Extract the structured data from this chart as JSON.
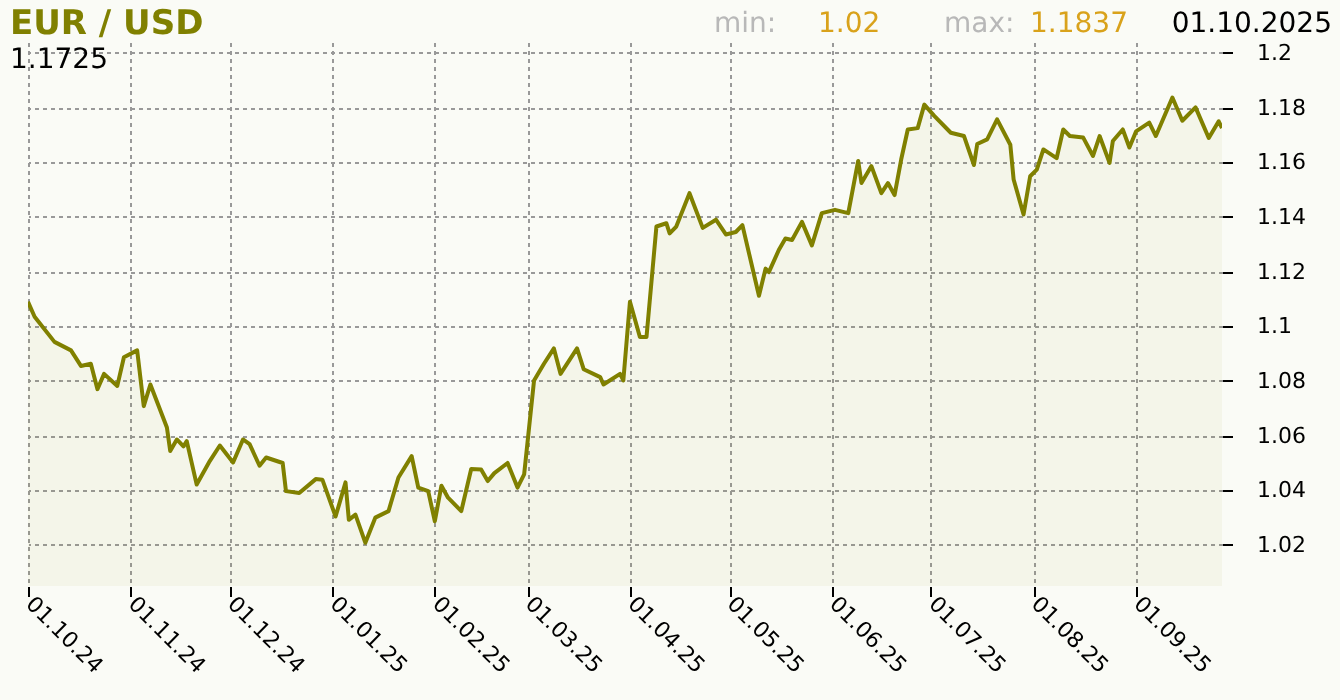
{
  "chart_data": {
    "type": "area",
    "title": "EUR / USD",
    "annotations": [
      "min:",
      "1.02",
      "max:",
      "1.1837",
      "01.10.2025",
      "1.1725"
    ],
    "x": [
      "2024-10-01",
      "2024-10-03",
      "2024-10-09",
      "2024-10-14",
      "2024-10-17",
      "2024-10-20",
      "2024-10-22",
      "2024-10-24",
      "2024-10-28",
      "2024-10-30",
      "2024-11-03",
      "2024-11-05",
      "2024-11-07",
      "2024-11-12",
      "2024-11-13",
      "2024-11-15",
      "2024-11-17",
      "2024-11-18",
      "2024-11-21",
      "2024-11-25",
      "2024-11-28",
      "2024-12-02",
      "2024-12-05",
      "2024-12-07",
      "2024-12-10",
      "2024-12-12",
      "2024-12-17",
      "2024-12-18",
      "2024-12-22",
      "2024-12-27",
      "2024-12-29",
      "2025-01-02",
      "2025-01-05",
      "2025-01-06",
      "2025-01-08",
      "2025-01-11",
      "2025-01-14",
      "2025-01-18",
      "2025-01-21",
      "2025-01-25",
      "2025-01-27",
      "2025-01-30",
      "2025-02-01",
      "2025-02-03",
      "2025-02-05",
      "2025-02-09",
      "2025-02-12",
      "2025-02-15",
      "2025-02-17",
      "2025-02-19",
      "2025-02-23",
      "2025-02-26",
      "2025-02-28",
      "2025-03-03",
      "2025-03-06",
      "2025-03-09",
      "2025-03-11",
      "2025-03-16",
      "2025-03-18",
      "2025-03-23",
      "2025-03-24",
      "2025-03-29",
      "2025-03-30",
      "2025-04-01",
      "2025-04-04",
      "2025-04-06",
      "2025-04-09",
      "2025-04-12",
      "2025-04-13",
      "2025-04-15",
      "2025-04-19",
      "2025-04-23",
      "2025-04-27",
      "2025-04-30",
      "2025-05-03",
      "2025-05-05",
      "2025-05-10",
      "2025-05-12",
      "2025-05-13",
      "2025-05-16",
      "2025-05-18",
      "2025-05-20",
      "2025-05-23",
      "2025-05-26",
      "2025-05-29",
      "2025-06-02",
      "2025-06-06",
      "2025-06-09",
      "2025-06-10",
      "2025-06-13",
      "2025-06-16",
      "2025-06-18",
      "2025-06-20",
      "2025-06-22",
      "2025-06-24",
      "2025-06-27",
      "2025-06-29",
      "2025-07-02",
      "2025-07-07",
      "2025-07-11",
      "2025-07-14",
      "2025-07-15",
      "2025-07-18",
      "2025-07-21",
      "2025-07-25",
      "2025-07-26",
      "2025-07-29",
      "2025-07-31",
      "2025-08-02",
      "2025-08-04",
      "2025-08-08",
      "2025-08-10",
      "2025-08-12",
      "2025-08-16",
      "2025-08-19",
      "2025-08-21",
      "2025-08-24",
      "2025-08-25",
      "2025-08-28",
      "2025-08-30",
      "2025-09-01",
      "2025-09-05",
      "2025-09-07",
      "2025-09-12",
      "2025-09-15",
      "2025-09-19",
      "2025-09-23",
      "2025-09-26",
      "2025-09-27"
    ],
    "series": [
      {
        "color": "#808000",
        "values": [
          1.109,
          1.1035,
          1.0943,
          1.0912,
          1.0855,
          1.0863,
          1.077,
          1.0826,
          1.0782,
          1.0887,
          1.0912,
          1.0708,
          1.0787,
          1.063,
          1.0544,
          1.0586,
          1.0561,
          1.058,
          1.0421,
          1.0508,
          1.0564,
          1.0502,
          1.0586,
          1.0569,
          1.049,
          1.052,
          1.05,
          1.0397,
          1.039,
          1.0441,
          1.0439,
          1.0304,
          1.0429,
          1.0292,
          1.0311,
          1.0208,
          1.03,
          1.0324,
          1.0447,
          1.0525,
          1.041,
          1.0397,
          1.0287,
          1.0417,
          1.0373,
          1.0324,
          1.0478,
          1.0476,
          1.0434,
          1.0463,
          1.05,
          1.041,
          1.0458,
          1.0802,
          1.0863,
          1.0919,
          1.0826,
          1.0919,
          1.0843,
          1.0814,
          1.0787,
          1.0826,
          1.0802,
          1.109,
          1.0961,
          1.0961,
          1.1365,
          1.1377,
          1.134,
          1.1365,
          1.1487,
          1.136,
          1.139,
          1.1336,
          1.1345,
          1.137,
          1.1112,
          1.1211,
          1.1198,
          1.1279,
          1.1321,
          1.1316,
          1.1382,
          1.1296,
          1.1414,
          1.1426,
          1.1414,
          1.1605,
          1.1524,
          1.1586,
          1.1487,
          1.1524,
          1.148,
          1.161,
          1.172,
          1.1725,
          1.1811,
          1.177,
          1.1708,
          1.1696,
          1.159,
          1.1667,
          1.1684,
          1.1757,
          1.1664,
          1.1537,
          1.1409,
          1.1549,
          1.1573,
          1.1647,
          1.1615,
          1.172,
          1.1696,
          1.1691,
          1.1623,
          1.1696,
          1.1598,
          1.1678,
          1.172,
          1.1654,
          1.1713,
          1.1745,
          1.1696,
          1.1837,
          1.1752,
          1.1801,
          1.1689,
          1.175,
          1.1725
        ]
      }
    ],
    "xlim": [
      "2024-10-01",
      "2025-09-27"
    ],
    "xticks": [
      {
        "value": "2024-10-01",
        "label": "01.10.24"
      },
      {
        "value": "2024-11-01",
        "label": "01.11.24"
      },
      {
        "value": "2024-12-01",
        "label": "01.12.24"
      },
      {
        "value": "2025-01-01",
        "label": "01.01.25"
      },
      {
        "value": "2025-02-01",
        "label": "01.02.25"
      },
      {
        "value": "2025-03-01",
        "label": "01.03.25"
      },
      {
        "value": "2025-04-01",
        "label": "01.04.25"
      },
      {
        "value": "2025-05-01",
        "label": "01.05.25"
      },
      {
        "value": "2025-06-01",
        "label": "01.06.25"
      },
      {
        "value": "2025-07-01",
        "label": "01.07.25"
      },
      {
        "value": "2025-08-01",
        "label": "01.08.25"
      },
      {
        "value": "2025-09-01",
        "label": "01.09.25"
      }
    ],
    "ylim": [
      1.005,
      1.204
    ],
    "yticks": [
      1.02,
      1.04,
      1.06,
      1.08,
      1.1,
      1.12,
      1.14,
      1.16,
      1.18,
      1.2
    ],
    "grid": true
  }
}
